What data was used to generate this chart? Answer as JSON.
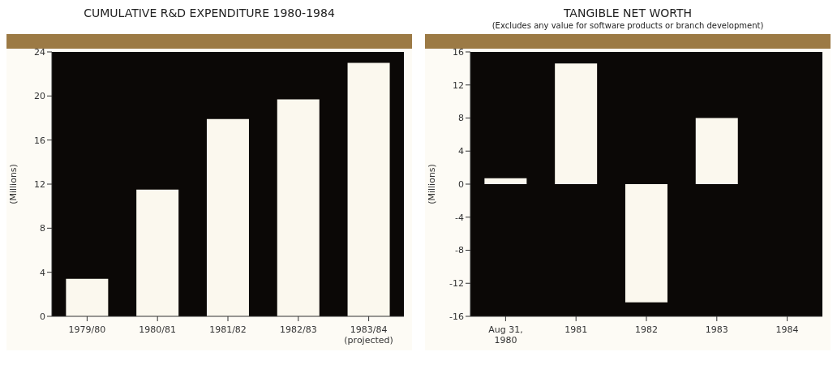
{
  "chart_data": [
    {
      "type": "bar",
      "title": "CUMULATIVE R&D EXPENDITURE 1980-1984",
      "ylabel": "(Millions)",
      "categories": [
        "1979/80",
        "1980/81",
        "1981/82",
        "1982/83",
        "1983/84\n(projected)"
      ],
      "values": [
        3.4,
        11.5,
        17.9,
        19.7,
        23.0
      ],
      "color": "#fbf8ee",
      "ylim": [
        0,
        24
      ],
      "yticks": [
        0,
        4,
        8,
        12,
        16,
        20,
        24
      ],
      "grid": false,
      "legend": false
    },
    {
      "type": "bar",
      "title": "TANGIBLE NET WORTH",
      "subtitle": "(Excludes any value for software products or branch development)",
      "ylabel": "(Millions)",
      "categories": [
        "Aug 31,\n1980",
        "1981",
        "1982",
        "1983",
        "1984"
      ],
      "values": [
        0.7,
        14.6,
        -14.3,
        8.0,
        null
      ],
      "color": "#fbf8ee",
      "ylim": [
        -16,
        16
      ],
      "yticks": [
        -16,
        -12,
        -8,
        -4,
        0,
        4,
        8,
        12,
        16
      ],
      "grid": false,
      "legend": false
    }
  ]
}
